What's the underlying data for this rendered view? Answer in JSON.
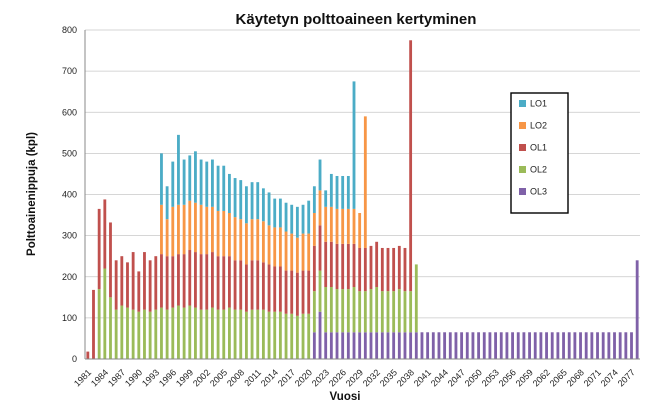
{
  "chart_data": {
    "type": "bar",
    "stacked": true,
    "title": "Käytetyn polttoaineen kertyminen",
    "xlabel": "Vuosi",
    "ylabel": "Polttoainenippuja (kpl)",
    "ylim": [
      0,
      800
    ],
    "yticks": [
      0,
      100,
      200,
      300,
      400,
      500,
      600,
      700,
      800
    ],
    "grid": true,
    "legend_position": "right",
    "x_start": 1981,
    "x_end": 2078,
    "x_tick_labels": [
      "1981",
      "1984",
      "1987",
      "1990",
      "1993",
      "1996",
      "1999",
      "2002",
      "2005",
      "2008",
      "2011",
      "2014",
      "2017",
      "2020",
      "2023",
      "2026",
      "2029",
      "2032",
      "2035",
      "2038",
      "2041",
      "2044",
      "2047",
      "2050",
      "2053",
      "2056",
      "2059",
      "2062",
      "2065",
      "2068",
      "2071",
      "2074",
      "2077"
    ],
    "series": [
      {
        "name": "OL3",
        "color": "#7F61A8",
        "values": [
          0,
          0,
          0,
          0,
          0,
          0,
          0,
          0,
          0,
          0,
          0,
          0,
          0,
          0,
          0,
          0,
          0,
          0,
          0,
          0,
          0,
          0,
          0,
          0,
          0,
          0,
          0,
          0,
          0,
          0,
          0,
          0,
          0,
          0,
          0,
          0,
          0,
          0,
          0,
          0,
          65,
          115,
          65,
          65,
          65,
          65,
          65,
          65,
          65,
          65,
          65,
          65,
          65,
          65,
          65,
          65,
          65,
          65,
          65,
          65,
          65,
          65,
          65,
          65,
          65,
          65,
          65,
          65,
          65,
          65,
          65,
          65,
          65,
          65,
          65,
          65,
          65,
          65,
          65,
          65,
          65,
          65,
          65,
          65,
          65,
          65,
          65,
          65,
          65,
          65,
          65,
          65,
          65,
          65,
          65,
          65,
          65,
          240
        ]
      },
      {
        "name": "OL2",
        "color": "#9BBB59",
        "values": [
          0,
          0,
          170,
          220,
          150,
          120,
          130,
          125,
          120,
          115,
          120,
          115,
          120,
          125,
          120,
          125,
          130,
          125,
          130,
          125,
          120,
          120,
          125,
          120,
          120,
          125,
          120,
          120,
          115,
          120,
          120,
          120,
          115,
          115,
          115,
          110,
          110,
          105,
          110,
          110,
          100,
          100,
          110,
          110,
          105,
          105,
          105,
          110,
          100,
          100,
          105,
          110,
          100,
          100,
          100,
          105,
          100,
          100,
          165,
          0,
          0,
          0,
          0,
          0,
          0,
          0,
          0,
          0,
          0,
          0,
          0,
          0,
          0,
          0,
          0,
          0,
          0,
          0,
          0,
          0,
          0,
          0,
          0,
          0,
          0,
          0,
          0,
          0,
          0,
          0,
          0,
          0,
          0,
          0,
          0,
          0,
          0,
          0
        ]
      },
      {
        "name": "OL1",
        "color": "#C0504D",
        "values": [
          18,
          168,
          195,
          168,
          182,
          120,
          120,
          110,
          140,
          98,
          140,
          125,
          130,
          130,
          130,
          125,
          125,
          130,
          135,
          135,
          135,
          135,
          135,
          130,
          130,
          125,
          120,
          120,
          115,
          120,
          120,
          115,
          115,
          110,
          110,
          105,
          105,
          105,
          105,
          105,
          110,
          110,
          110,
          110,
          110,
          110,
          110,
          105,
          105,
          105,
          105,
          110,
          105,
          105,
          105,
          105,
          105,
          610,
          0,
          0,
          0,
          0,
          0,
          0,
          0,
          0,
          0,
          0,
          0,
          0,
          0,
          0,
          0,
          0,
          0,
          0,
          0,
          0,
          0,
          0,
          0,
          0,
          0,
          0,
          0,
          0,
          0,
          0,
          0,
          0,
          0,
          0,
          0,
          0,
          0,
          0,
          0,
          0
        ]
      },
      {
        "name": "LO2",
        "color": "#F79646",
        "values": [
          0,
          0,
          0,
          0,
          0,
          0,
          0,
          0,
          0,
          0,
          0,
          0,
          0,
          120,
          90,
          120,
          120,
          120,
          120,
          120,
          120,
          115,
          110,
          110,
          110,
          105,
          105,
          100,
          100,
          100,
          100,
          100,
          95,
          95,
          95,
          95,
          90,
          85,
          90,
          90,
          80,
          85,
          85,
          85,
          85,
          85,
          85,
          85,
          85,
          320,
          0,
          0,
          0,
          0,
          0,
          0,
          0,
          0,
          0,
          0,
          0,
          0,
          0,
          0,
          0,
          0,
          0,
          0,
          0,
          0,
          0,
          0,
          0,
          0,
          0,
          0,
          0,
          0,
          0,
          0,
          0,
          0,
          0,
          0,
          0,
          0,
          0,
          0,
          0,
          0,
          0,
          0,
          0,
          0,
          0,
          0,
          0,
          0
        ]
      },
      {
        "name": "LO1",
        "color": "#4BACC6",
        "values": [
          0,
          0,
          0,
          0,
          0,
          0,
          0,
          0,
          0,
          0,
          0,
          0,
          0,
          125,
          80,
          110,
          170,
          110,
          110,
          125,
          110,
          110,
          115,
          110,
          110,
          95,
          95,
          95,
          90,
          90,
          90,
          80,
          80,
          70,
          70,
          70,
          70,
          75,
          70,
          80,
          65,
          75,
          40,
          80,
          80,
          80,
          80,
          310,
          0,
          0,
          0,
          0,
          0,
          0,
          0,
          0,
          0,
          0,
          0,
          0,
          0,
          0,
          0,
          0,
          0,
          0,
          0,
          0,
          0,
          0,
          0,
          0,
          0,
          0,
          0,
          0,
          0,
          0,
          0,
          0,
          0,
          0,
          0,
          0,
          0,
          0,
          0,
          0,
          0,
          0,
          0,
          0,
          0,
          0,
          0,
          0,
          0,
          0
        ]
      }
    ],
    "legend_order": [
      "LO1",
      "LO2",
      "OL1",
      "OL2",
      "OL3"
    ]
  }
}
